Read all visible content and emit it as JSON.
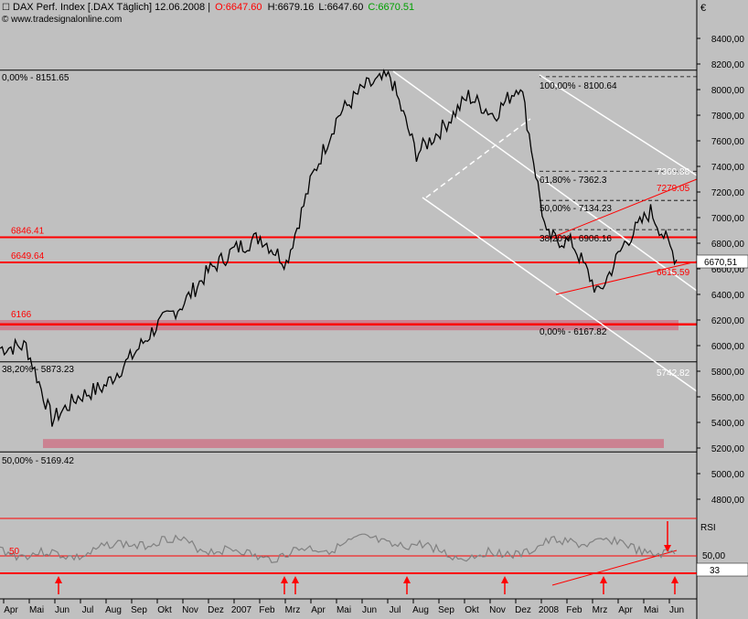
{
  "header": {
    "title": "DAX Perf. Index [.DAX  Täglich] 12.06.2008 |",
    "open": "O:6647.60",
    "high": "H:6679.16",
    "low": "L:6647.60",
    "close": "C:6670.51",
    "source": "© www.tradesignalonline.com",
    "currency_symbol": "€"
  },
  "colors": {
    "background": "#c0c0c0",
    "price_line": "#000000",
    "red_line": "#ff0000",
    "zone": "#cc7788",
    "white_line": "#ffffff",
    "rsi_line": "#808080"
  },
  "chart_data": {
    "type": "line",
    "title": "DAX Perf. Index [.DAX  Täglich] 12.06.2008",
    "ylim": [
      4600,
      8500
    ],
    "y_ticks": [
      "8400,00",
      "8200,00",
      "8000,00",
      "7800,00",
      "7600,00",
      "7400,00",
      "7200,00",
      "7000,00",
      "6800,00",
      "6600,00",
      "6400,00",
      "6200,00",
      "6000,00",
      "5800,00",
      "5600,00",
      "5400,00",
      "5200,00",
      "5000,00",
      "4800,00"
    ],
    "x_ticks": [
      "Apr",
      "Mai",
      "Jun",
      "Jul",
      "Aug",
      "Sep",
      "Okt",
      "Nov",
      "Dez",
      "2007",
      "Feb",
      "Mrz",
      "Apr",
      "Mai",
      "Jun",
      "Jul",
      "Aug",
      "Sep",
      "Okt",
      "Nov",
      "Dez",
      "2008",
      "Feb",
      "Mrz",
      "Apr",
      "Mai",
      "Jun"
    ],
    "last_price_label": "6670,51",
    "series": [
      {
        "x": [
          "2006-04",
          "2006-05",
          "2006-06",
          "2006-07",
          "2006-08",
          "2006-09",
          "2006-10",
          "2006-11",
          "2006-12",
          "2007-01",
          "2007-02",
          "2007-03",
          "2007-04",
          "2007-05",
          "2007-06",
          "2007-07",
          "2007-08",
          "2007-09",
          "2007-10",
          "2007-11",
          "2007-12",
          "2008-01",
          "2008-02",
          "2008-03",
          "2008-04",
          "2008-05",
          "2008-06"
        ],
        "values": [
          5980,
          6000,
          5420,
          5600,
          5680,
          5900,
          6150,
          6320,
          6580,
          6750,
          6850,
          6650,
          7320,
          7800,
          8020,
          8100,
          7500,
          7700,
          7950,
          7800,
          8050,
          6850,
          6800,
          6400,
          6800,
          7050,
          6670
        ]
      }
    ],
    "horizontal_levels": [
      {
        "label": "6846.41",
        "value": 6846.41
      },
      {
        "label": "6649.64",
        "value": 6649.64
      },
      {
        "label": "6166",
        "value": 6166
      }
    ],
    "fib_labels": [
      {
        "text": "0,00% - 8151.65",
        "value": 8151.65
      },
      {
        "text": "38,20% - 5873.23",
        "value": 5873.23
      },
      {
        "text": "50,00% - 5169.42",
        "value": 5169.42
      },
      {
        "text": "100,00% - 8100.64",
        "value": 8100.64
      },
      {
        "text": "61,80% - 7362.3",
        "value": 7362.3
      },
      {
        "text": "50,00% - 7134.23",
        "value": 7134.23
      },
      {
        "text": "38,20% - 6906.16",
        "value": 6906.16
      },
      {
        "text": "0,00% - 6167.82",
        "value": 6167.82
      }
    ],
    "channel_labels": [
      {
        "text": "7279.05",
        "value": 7279.05
      },
      {
        "text": "6615.59",
        "value": 6615.59
      },
      {
        "text": "5742.82",
        "value": 5742.82
      },
      {
        "text": "7369.88",
        "value": 7369.88
      }
    ],
    "rsi": {
      "label": "RSI",
      "level_label": "50,00",
      "level_value": 50,
      "current_value": "33",
      "inner_label": "50"
    }
  }
}
